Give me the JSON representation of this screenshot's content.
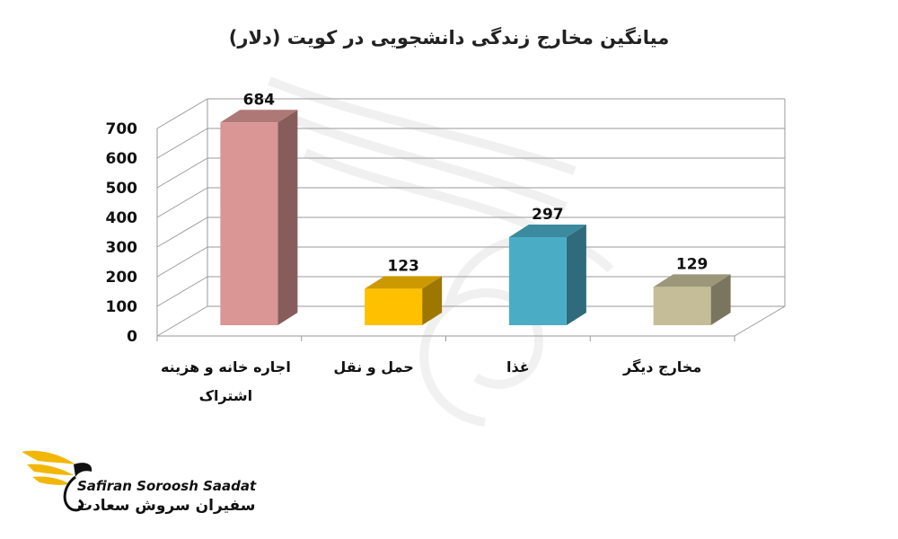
{
  "chart_data": {
    "type": "bar",
    "title": "میانگین مخارج زندگی دانشجویی در کویت (دلار)",
    "categories": [
      "اجاره خانه و هزینه اشتراک",
      "حمل و نقل",
      "غذا",
      "مخارج دیگر"
    ],
    "category_lines": [
      [
        "اجاره خانه و هزینه",
        "اشتراک"
      ],
      [
        "حمل و نقل"
      ],
      [
        "غذا"
      ],
      [
        "مخارج دیگر"
      ]
    ],
    "values": [
      684,
      123,
      297,
      129
    ],
    "data_labels": [
      "684",
      "123",
      "297",
      "129"
    ],
    "colors": [
      "#d99694",
      "#ffc000",
      "#4bacc6",
      "#c4bd97"
    ],
    "yticks": [
      0,
      100,
      200,
      300,
      400,
      500,
      600,
      700
    ],
    "ylim": [
      0,
      700
    ],
    "grid": true,
    "style": "3d-column",
    "xlabel": "",
    "ylabel": ""
  },
  "branding": {
    "latin": "Safiran Soroosh Saadat",
    "persian": "سفیران سروش سعادت"
  }
}
